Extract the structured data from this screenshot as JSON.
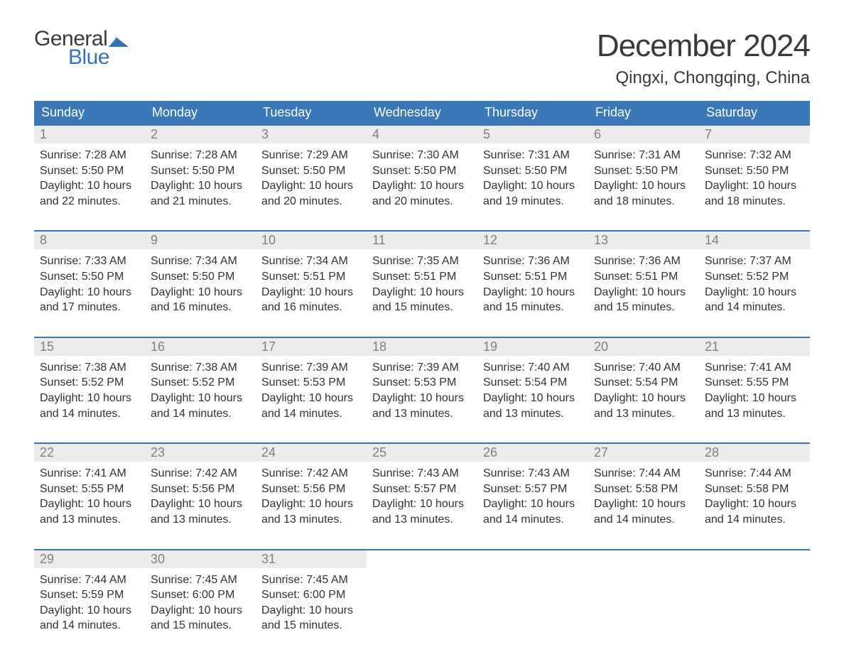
{
  "brand": {
    "word1": "General",
    "word2": "Blue",
    "word1_color": "#3a3a3a",
    "word2_color": "#3573b8",
    "flag_color": "#3573b8"
  },
  "title": "December 2024",
  "location": "Qingxi, Chongqing, China",
  "colors": {
    "header_bg": "#3a78b9",
    "header_text": "#ffffff",
    "week_border": "#3a78b9",
    "daynum_bg": "#ececec",
    "daynum_text": "#808080",
    "body_text": "#333333",
    "page_bg": "#ffffff"
  },
  "typography": {
    "title_fontsize": 44,
    "location_fontsize": 24,
    "weekday_fontsize": 18,
    "daynum_fontsize": 18,
    "body_fontsize": 16,
    "logo_fontsize": 30
  },
  "weekdays": [
    "Sunday",
    "Monday",
    "Tuesday",
    "Wednesday",
    "Thursday",
    "Friday",
    "Saturday"
  ],
  "labels": {
    "sunrise": "Sunrise:",
    "sunset": "Sunset:",
    "daylight": "Daylight:"
  },
  "days": [
    {
      "n": 1,
      "sunrise": "7:28 AM",
      "sunset": "5:50 PM",
      "daylight": "10 hours and 22 minutes."
    },
    {
      "n": 2,
      "sunrise": "7:28 AM",
      "sunset": "5:50 PM",
      "daylight": "10 hours and 21 minutes."
    },
    {
      "n": 3,
      "sunrise": "7:29 AM",
      "sunset": "5:50 PM",
      "daylight": "10 hours and 20 minutes."
    },
    {
      "n": 4,
      "sunrise": "7:30 AM",
      "sunset": "5:50 PM",
      "daylight": "10 hours and 20 minutes."
    },
    {
      "n": 5,
      "sunrise": "7:31 AM",
      "sunset": "5:50 PM",
      "daylight": "10 hours and 19 minutes."
    },
    {
      "n": 6,
      "sunrise": "7:31 AM",
      "sunset": "5:50 PM",
      "daylight": "10 hours and 18 minutes."
    },
    {
      "n": 7,
      "sunrise": "7:32 AM",
      "sunset": "5:50 PM",
      "daylight": "10 hours and 18 minutes."
    },
    {
      "n": 8,
      "sunrise": "7:33 AM",
      "sunset": "5:50 PM",
      "daylight": "10 hours and 17 minutes."
    },
    {
      "n": 9,
      "sunrise": "7:34 AM",
      "sunset": "5:50 PM",
      "daylight": "10 hours and 16 minutes."
    },
    {
      "n": 10,
      "sunrise": "7:34 AM",
      "sunset": "5:51 PM",
      "daylight": "10 hours and 16 minutes."
    },
    {
      "n": 11,
      "sunrise": "7:35 AM",
      "sunset": "5:51 PM",
      "daylight": "10 hours and 15 minutes."
    },
    {
      "n": 12,
      "sunrise": "7:36 AM",
      "sunset": "5:51 PM",
      "daylight": "10 hours and 15 minutes."
    },
    {
      "n": 13,
      "sunrise": "7:36 AM",
      "sunset": "5:51 PM",
      "daylight": "10 hours and 15 minutes."
    },
    {
      "n": 14,
      "sunrise": "7:37 AM",
      "sunset": "5:52 PM",
      "daylight": "10 hours and 14 minutes."
    },
    {
      "n": 15,
      "sunrise": "7:38 AM",
      "sunset": "5:52 PM",
      "daylight": "10 hours and 14 minutes."
    },
    {
      "n": 16,
      "sunrise": "7:38 AM",
      "sunset": "5:52 PM",
      "daylight": "10 hours and 14 minutes."
    },
    {
      "n": 17,
      "sunrise": "7:39 AM",
      "sunset": "5:53 PM",
      "daylight": "10 hours and 14 minutes."
    },
    {
      "n": 18,
      "sunrise": "7:39 AM",
      "sunset": "5:53 PM",
      "daylight": "10 hours and 13 minutes."
    },
    {
      "n": 19,
      "sunrise": "7:40 AM",
      "sunset": "5:54 PM",
      "daylight": "10 hours and 13 minutes."
    },
    {
      "n": 20,
      "sunrise": "7:40 AM",
      "sunset": "5:54 PM",
      "daylight": "10 hours and 13 minutes."
    },
    {
      "n": 21,
      "sunrise": "7:41 AM",
      "sunset": "5:55 PM",
      "daylight": "10 hours and 13 minutes."
    },
    {
      "n": 22,
      "sunrise": "7:41 AM",
      "sunset": "5:55 PM",
      "daylight": "10 hours and 13 minutes."
    },
    {
      "n": 23,
      "sunrise": "7:42 AM",
      "sunset": "5:56 PM",
      "daylight": "10 hours and 13 minutes."
    },
    {
      "n": 24,
      "sunrise": "7:42 AM",
      "sunset": "5:56 PM",
      "daylight": "10 hours and 13 minutes."
    },
    {
      "n": 25,
      "sunrise": "7:43 AM",
      "sunset": "5:57 PM",
      "daylight": "10 hours and 13 minutes."
    },
    {
      "n": 26,
      "sunrise": "7:43 AM",
      "sunset": "5:57 PM",
      "daylight": "10 hours and 14 minutes."
    },
    {
      "n": 27,
      "sunrise": "7:44 AM",
      "sunset": "5:58 PM",
      "daylight": "10 hours and 14 minutes."
    },
    {
      "n": 28,
      "sunrise": "7:44 AM",
      "sunset": "5:58 PM",
      "daylight": "10 hours and 14 minutes."
    },
    {
      "n": 29,
      "sunrise": "7:44 AM",
      "sunset": "5:59 PM",
      "daylight": "10 hours and 14 minutes."
    },
    {
      "n": 30,
      "sunrise": "7:45 AM",
      "sunset": "6:00 PM",
      "daylight": "10 hours and 15 minutes."
    },
    {
      "n": 31,
      "sunrise": "7:45 AM",
      "sunset": "6:00 PM",
      "daylight": "10 hours and 15 minutes."
    }
  ],
  "layout": {
    "first_weekday_index": 0,
    "weeks": 5,
    "cols": 7
  }
}
